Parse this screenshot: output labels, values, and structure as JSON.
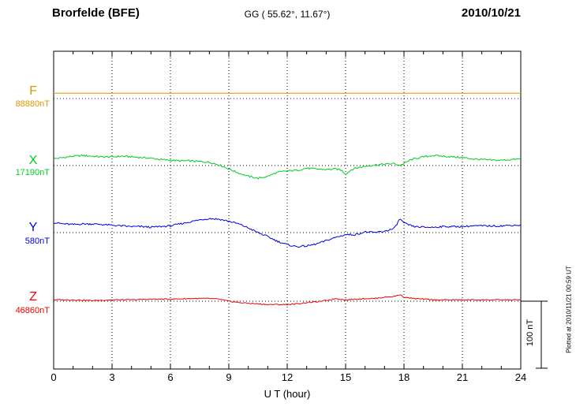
{
  "header": {
    "station": "Brorfelde (BFE)",
    "coords": "GG ( 55.62°,  11.67°)",
    "date": "2010/10/21"
  },
  "axes": {
    "x_label": "U T (hour)",
    "x_ticks": [
      0,
      3,
      6,
      9,
      12,
      15,
      18,
      21,
      24
    ],
    "x_range": [
      0,
      24
    ]
  },
  "scale_bar": {
    "label": "100 nT",
    "nT": 100
  },
  "footer_note": "Plotted at 2010/11/21 00:59 UT",
  "chart_data": {
    "type": "line",
    "title": "Brorfelde (BFE) magnetogram 2010/10/21",
    "xlabel": "U T (hour)",
    "x_range": [
      0,
      24
    ],
    "scale_nT_per_div": 100,
    "grid": "dotted",
    "series": [
      {
        "name": "F",
        "color": "#e09600",
        "baseline_color": "#0000cc",
        "base_label": "88880nT",
        "base_value_nT": 88880,
        "noise_nT": 0,
        "points": [
          [
            0,
            8
          ],
          [
            6,
            8
          ],
          [
            12,
            8
          ],
          [
            18,
            8
          ],
          [
            24,
            8
          ]
        ]
      },
      {
        "name": "X",
        "color": "#00cc22",
        "baseline_color": "#000000",
        "base_label": "17190nT",
        "base_value_nT": 17190,
        "noise_nT": 1.3,
        "points": [
          [
            0,
            10
          ],
          [
            0.5,
            12
          ],
          [
            1,
            14
          ],
          [
            1.5,
            15
          ],
          [
            2,
            14
          ],
          [
            2.5,
            13
          ],
          [
            3,
            13
          ],
          [
            3.5,
            14
          ],
          [
            4,
            13
          ],
          [
            4.5,
            12
          ],
          [
            5,
            11
          ],
          [
            5.5,
            9
          ],
          [
            6,
            8
          ],
          [
            6.5,
            7
          ],
          [
            7,
            7
          ],
          [
            7.5,
            6
          ],
          [
            8,
            5
          ],
          [
            8.5,
            1
          ],
          [
            9,
            -5
          ],
          [
            9.5,
            -11
          ],
          [
            10,
            -16
          ],
          [
            10.5,
            -19
          ],
          [
            11,
            -16
          ],
          [
            11.5,
            -10
          ],
          [
            12,
            -8
          ],
          [
            12.5,
            -7
          ],
          [
            13,
            -4
          ],
          [
            13.5,
            -5
          ],
          [
            14,
            -6
          ],
          [
            14.5,
            -5
          ],
          [
            14.8,
            -7
          ],
          [
            15,
            -13
          ],
          [
            15.3,
            -6
          ],
          [
            15.5,
            -4
          ],
          [
            16,
            -1
          ],
          [
            16.5,
            1
          ],
          [
            17,
            2
          ],
          [
            17.5,
            3
          ],
          [
            17.8,
            0
          ],
          [
            18,
            3
          ],
          [
            18.3,
            8
          ],
          [
            18.5,
            10
          ],
          [
            19,
            13
          ],
          [
            19.5,
            15
          ],
          [
            20,
            14
          ],
          [
            20.5,
            13
          ],
          [
            21,
            12
          ],
          [
            21.5,
            10
          ],
          [
            22,
            9
          ],
          [
            22.5,
            8
          ],
          [
            23,
            8
          ],
          [
            23.5,
            9
          ],
          [
            24,
            10
          ]
        ]
      },
      {
        "name": "Y",
        "color": "#0000dd",
        "baseline_color": "#000000",
        "base_label": "580nT",
        "base_value_nT": 580,
        "noise_nT": 1.3,
        "points": [
          [
            0,
            15
          ],
          [
            0.5,
            13
          ],
          [
            1,
            12
          ],
          [
            1.5,
            13
          ],
          [
            2,
            13
          ],
          [
            2.5,
            12
          ],
          [
            3,
            11
          ],
          [
            3.5,
            10
          ],
          [
            4,
            9
          ],
          [
            4.5,
            9
          ],
          [
            5,
            8
          ],
          [
            5.5,
            9
          ],
          [
            6,
            10
          ],
          [
            6.5,
            13
          ],
          [
            7,
            16
          ],
          [
            7.5,
            19
          ],
          [
            8,
            21
          ],
          [
            8.5,
            20
          ],
          [
            9,
            17
          ],
          [
            9.5,
            13
          ],
          [
            10,
            7
          ],
          [
            10.5,
            0
          ],
          [
            11,
            -6
          ],
          [
            11.5,
            -13
          ],
          [
            12,
            -18
          ],
          [
            12.5,
            -21
          ],
          [
            13,
            -20
          ],
          [
            13.5,
            -17
          ],
          [
            14,
            -12
          ],
          [
            14.5,
            -7
          ],
          [
            15,
            -3
          ],
          [
            15.5,
            -3
          ],
          [
            16,
            1
          ],
          [
            16.5,
            0
          ],
          [
            17,
            2
          ],
          [
            17.5,
            6
          ],
          [
            17.8,
            21
          ],
          [
            18,
            14
          ],
          [
            18.5,
            9
          ],
          [
            19,
            8
          ],
          [
            19.5,
            8
          ],
          [
            20,
            9
          ],
          [
            20.5,
            9
          ],
          [
            21,
            9
          ],
          [
            21.5,
            10
          ],
          [
            22,
            10
          ],
          [
            22.5,
            10
          ],
          [
            23,
            10
          ],
          [
            23.5,
            11
          ],
          [
            24,
            11
          ]
        ]
      },
      {
        "name": "Z",
        "color": "#ee0000",
        "baseline_color": "#000000",
        "base_label": "46860nT",
        "base_value_nT": 46860,
        "noise_nT": 0.8,
        "points": [
          [
            0,
            2
          ],
          [
            1,
            2
          ],
          [
            2,
            1
          ],
          [
            3,
            2
          ],
          [
            4,
            2
          ],
          [
            5,
            3
          ],
          [
            6,
            3
          ],
          [
            7,
            4
          ],
          [
            8,
            4
          ],
          [
            8.5,
            3
          ],
          [
            9,
            0
          ],
          [
            9.5,
            -2
          ],
          [
            10,
            -3
          ],
          [
            10.5,
            -4
          ],
          [
            11,
            -5
          ],
          [
            11.5,
            -5
          ],
          [
            12,
            -5
          ],
          [
            12.5,
            -4
          ],
          [
            13,
            -2
          ],
          [
            13.5,
            -1
          ],
          [
            14,
            1
          ],
          [
            14.5,
            4
          ],
          [
            15,
            2
          ],
          [
            15.5,
            3
          ],
          [
            16,
            4
          ],
          [
            16.5,
            4
          ],
          [
            17,
            6
          ],
          [
            17.5,
            7
          ],
          [
            17.8,
            10
          ],
          [
            18,
            6
          ],
          [
            18.5,
            4
          ],
          [
            19,
            3
          ],
          [
            19.5,
            2
          ],
          [
            20,
            2
          ],
          [
            21,
            2
          ],
          [
            22,
            2
          ],
          [
            23,
            2
          ],
          [
            24,
            2
          ]
        ]
      }
    ]
  }
}
